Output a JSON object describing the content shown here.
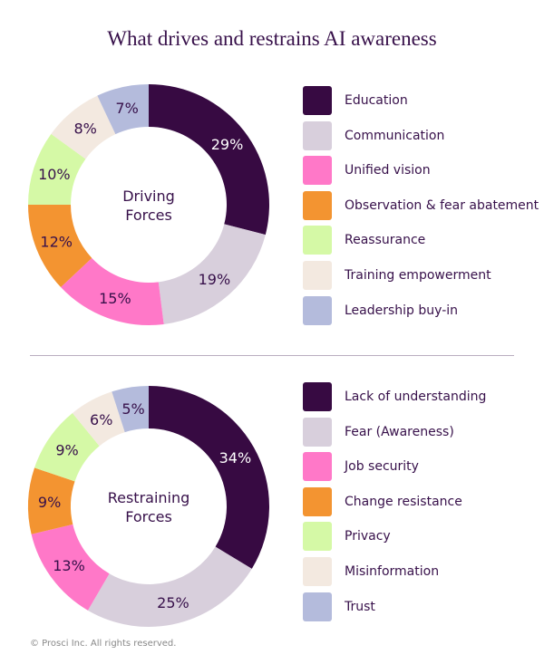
{
  "title": "What drives and restrains AI awareness",
  "footer": "© Prosci Inc. All rights reserved.",
  "colors": [
    "#370a42",
    "#d8cfdc",
    "#ff78c8",
    "#f39431",
    "#d5f9a6",
    "#f3e9e0",
    "#b4bbdc"
  ],
  "chart_data": [
    {
      "type": "pie",
      "donut": true,
      "center_label": [
        "Driving",
        "Forces"
      ],
      "categories": [
        "Education",
        "Communication",
        "Unified vision",
        "Observation & fear abatement",
        "Reassurance",
        "Training empowerment",
        "Leadership buy-in"
      ],
      "values": [
        29,
        19,
        15,
        12,
        10,
        8,
        7
      ],
      "labels": [
        "29%",
        "19%",
        "15%",
        "12%",
        "10%",
        "8%",
        "7%"
      ],
      "legend": "right"
    },
    {
      "type": "pie",
      "donut": true,
      "center_label": [
        "Restraining",
        "Forces"
      ],
      "categories": [
        "Lack of understanding",
        "Fear (Awareness)",
        "Job security",
        "Change resistance",
        "Privacy",
        "Misinformation",
        "Trust"
      ],
      "values": [
        34,
        25,
        13,
        9,
        9,
        6,
        5
      ],
      "labels": [
        "34%",
        "25%",
        "13%",
        "9%",
        "9%",
        "6%",
        "5%"
      ],
      "legend": "right"
    }
  ]
}
